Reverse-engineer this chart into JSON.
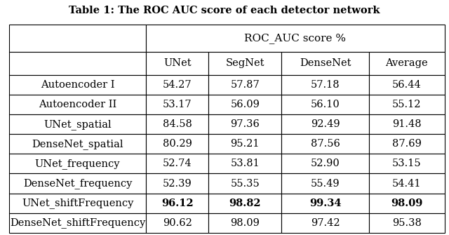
{
  "title": "Table 1: The ROC AUC score of each detector network",
  "header_group": "ROC_AUC score %",
  "col_headers": [
    "UNet",
    "SegNet",
    "DenseNet",
    "Average"
  ],
  "row_labels": [
    "Autoencoder I",
    "Autoencoder II",
    "UNet_spatial",
    "DenseNet_spatial",
    "UNet_frequency",
    "DenseNet_frequency",
    "UNet_shiftFrequency",
    "DenseNet_shiftFrequency"
  ],
  "data": [
    [
      54.27,
      57.87,
      57.18,
      56.44
    ],
    [
      53.17,
      56.09,
      56.1,
      55.12
    ],
    [
      84.58,
      97.36,
      92.49,
      91.48
    ],
    [
      80.29,
      95.21,
      87.56,
      87.69
    ],
    [
      52.74,
      53.81,
      52.9,
      53.15
    ],
    [
      52.39,
      55.35,
      55.49,
      54.41
    ],
    [
      96.12,
      98.82,
      99.34,
      98.09
    ],
    [
      90.62,
      98.09,
      97.42,
      95.38
    ]
  ],
  "bold_row": 6,
  "bg_color": "#ffffff",
  "line_color": "#000000",
  "font_size": 10.5,
  "title_font_size": 10.5
}
